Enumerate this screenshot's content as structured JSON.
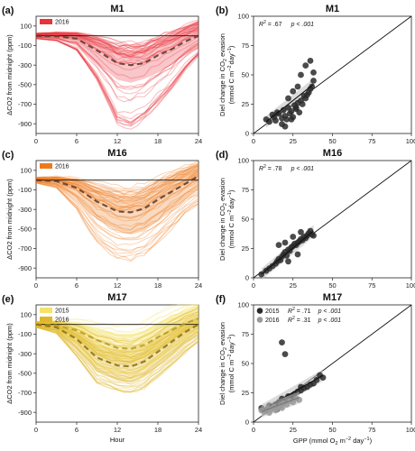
{
  "chart_data": [
    {
      "type": "line",
      "panel_label": "(a)",
      "title": "M1",
      "ylabel": "ΔCO2 from midnight (ppm)",
      "xlabel": "",
      "xlim": [
        0,
        24
      ],
      "ylim": [
        -1000,
        200
      ],
      "xticks": [
        0,
        6,
        12,
        18,
        24
      ],
      "yticks": [
        100,
        -100,
        -300,
        -500,
        -700,
        -900
      ],
      "reference_line": 0,
      "legend": {
        "placement": "top-left",
        "entries": [
          {
            "label": "2016",
            "color": "#e8333c"
          }
        ]
      },
      "series": [
        {
          "name": "2016",
          "color": "#e8333c",
          "mean_x": [
            0,
            3,
            6,
            9,
            12,
            14,
            16,
            18,
            20,
            22,
            24
          ],
          "mean_y": [
            0,
            -5,
            -30,
            -150,
            -280,
            -300,
            -280,
            -200,
            -140,
            -60,
            0
          ],
          "band_low": [
            -20,
            -30,
            -80,
            -280,
            -450,
            -480,
            -440,
            -380,
            -300,
            -200,
            -130
          ],
          "band_high": [
            20,
            25,
            20,
            -40,
            -120,
            -150,
            -120,
            -60,
            0,
            80,
            150
          ],
          "extreme_low": [
            -30,
            -50,
            -150,
            -450,
            -900,
            -950,
            -850,
            -700,
            -550,
            -350,
            -200
          ],
          "extreme_high": [
            30,
            40,
            40,
            10,
            -40,
            -60,
            -40,
            20,
            60,
            120,
            170
          ]
        }
      ]
    },
    {
      "type": "scatter",
      "panel_label": "(b)",
      "title": "M1",
      "ylabel_main": "Diel change in CO",
      "ylabel_sub1": "2",
      "ylabel_mid": " evasion",
      "ylabel_line2": "(mmol C m",
      "ylabel_sup1": "−2",
      "ylabel_day": "day",
      "ylabel_sup2": "−1",
      "ylabel_close": ")",
      "xlim": [
        0,
        100
      ],
      "ylim": [
        0,
        100
      ],
      "xticks": [
        0,
        25,
        50,
        75,
        100
      ],
      "yticks": [
        0,
        25,
        50,
        75,
        100
      ],
      "annotation": {
        "r2_label": "R",
        "r2_sup": "2",
        "r2_value": " = .67",
        "p_text": "p < .001"
      },
      "one_to_one_line": true,
      "series": [
        {
          "name": "2016",
          "color": "#2b2b2b",
          "x": [
            8,
            10,
            12,
            13,
            14,
            15,
            16,
            18,
            19,
            20,
            21,
            22,
            23,
            24,
            25,
            26,
            27,
            28,
            29,
            30,
            31,
            32,
            33,
            34,
            35,
            36,
            37,
            38,
            28,
            30,
            33,
            36,
            38,
            25,
            22,
            18,
            20,
            24,
            27
          ],
          "y": [
            12,
            10,
            16,
            14,
            11,
            18,
            17,
            13,
            20,
            15,
            12,
            22,
            17,
            19,
            14,
            24,
            21,
            26,
            18,
            28,
            25,
            32,
            30,
            33,
            35,
            38,
            40,
            45,
            40,
            50,
            58,
            62,
            52,
            36,
            30,
            8,
            6,
            12,
            22
          ],
          "fit": {
            "x": [
              8,
              38
            ],
            "y": [
              10,
              42
            ]
          }
        }
      ]
    },
    {
      "type": "line",
      "panel_label": "(c)",
      "title": "M16",
      "ylabel": "ΔCO2 from midnight (ppm)",
      "xlabel": "",
      "xlim": [
        0,
        24
      ],
      "ylim": [
        -1000,
        200
      ],
      "xticks": [
        0,
        6,
        12,
        18,
        24
      ],
      "yticks": [
        100,
        -100,
        -300,
        -500,
        -700,
        -900
      ],
      "reference_line": 0,
      "legend": {
        "placement": "top-left",
        "entries": [
          {
            "label": "2016",
            "color": "#ee7a1d"
          }
        ]
      },
      "series": [
        {
          "name": "2016",
          "color": "#ee7a1d",
          "mean_x": [
            0,
            3,
            6,
            9,
            12,
            14,
            16,
            18,
            20,
            22,
            24
          ],
          "mean_y": [
            0,
            -10,
            -80,
            -220,
            -320,
            -330,
            -290,
            -200,
            -120,
            -40,
            40
          ],
          "band_low": [
            -20,
            -50,
            -180,
            -400,
            -520,
            -560,
            -520,
            -420,
            -320,
            -200,
            -100
          ],
          "band_high": [
            20,
            30,
            0,
            -80,
            -150,
            -170,
            -120,
            -40,
            40,
            110,
            160
          ],
          "extreme_low": [
            -30,
            -80,
            -300,
            -650,
            -800,
            -820,
            -760,
            -650,
            -500,
            -350,
            -250
          ],
          "extreme_high": [
            30,
            40,
            30,
            -20,
            -60,
            -70,
            -30,
            40,
            100,
            150,
            190
          ]
        }
      ]
    },
    {
      "type": "scatter",
      "panel_label": "(d)",
      "title": "M16",
      "ylabel_main": "Diel change in CO",
      "ylabel_sub1": "2",
      "ylabel_mid": " evasion",
      "ylabel_line2": "(mmol C m",
      "ylabel_sup1": "−2",
      "ylabel_day": "day",
      "ylabel_sup2": "−1",
      "ylabel_close": ")",
      "xlim": [
        0,
        100
      ],
      "ylim": [
        0,
        100
      ],
      "xticks": [
        0,
        25,
        50,
        75,
        100
      ],
      "yticks": [
        0,
        25,
        50,
        75,
        100
      ],
      "annotation": {
        "r2_label": "R",
        "r2_sup": "2",
        "r2_value": " = .78",
        "p_text": "p < .001"
      },
      "one_to_one_line": true,
      "series": [
        {
          "name": "2016",
          "color": "#2b2b2b",
          "x": [
            5,
            8,
            10,
            12,
            14,
            15,
            16,
            17,
            18,
            19,
            20,
            21,
            22,
            23,
            24,
            25,
            26,
            27,
            28,
            29,
            30,
            31,
            32,
            33,
            34,
            35,
            36,
            37,
            38,
            16,
            20,
            25,
            30,
            22,
            28
          ],
          "y": [
            3,
            6,
            8,
            10,
            12,
            14,
            16,
            15,
            18,
            20,
            22,
            19,
            24,
            23,
            26,
            27,
            29,
            28,
            30,
            31,
            33,
            32,
            35,
            34,
            36,
            38,
            40,
            37,
            36,
            28,
            30,
            35,
            39,
            14,
            20
          ],
          "fit": {
            "x": [
              5,
              38
            ],
            "y": [
              3,
              40
            ]
          }
        }
      ]
    },
    {
      "type": "line",
      "panel_label": "(e)",
      "title": "M17",
      "ylabel": "ΔCO2 from midnight (ppm)",
      "xlabel": "Hour",
      "xlim": [
        0,
        24
      ],
      "ylim": [
        -1000,
        200
      ],
      "xticks": [
        0,
        6,
        12,
        18,
        24
      ],
      "yticks": [
        100,
        -100,
        -300,
        -500,
        -700,
        -900
      ],
      "reference_line": 0,
      "legend": {
        "placement": "top-left",
        "entries": [
          {
            "label": "2015",
            "color": "#f5e26b"
          },
          {
            "label": "2016",
            "color": "#e0b72a"
          }
        ]
      },
      "series": [
        {
          "name": "2015",
          "color": "#f5e26b",
          "mean_x": [
            0,
            3,
            6,
            9,
            12,
            14,
            16,
            18,
            20,
            22,
            24
          ],
          "mean_y": [
            0,
            -10,
            -60,
            -160,
            -240,
            -250,
            -210,
            -130,
            -60,
            10,
            60
          ],
          "band_low": [
            -20,
            -40,
            -140,
            -300,
            -380,
            -390,
            -340,
            -260,
            -170,
            -80,
            -20
          ],
          "band_high": [
            20,
            30,
            20,
            -40,
            -90,
            -100,
            -60,
            20,
            90,
            140,
            200
          ],
          "extreme_low": [
            -30,
            -60,
            -200,
            -420,
            -500,
            -520,
            -460,
            -360,
            -250,
            -150,
            -60
          ],
          "extreme_high": [
            30,
            50,
            60,
            40,
            10,
            0,
            50,
            130,
            200,
            260,
            300
          ]
        },
        {
          "name": "2016",
          "color": "#e0b72a",
          "mean_x": [
            0,
            3,
            6,
            9,
            12,
            14,
            16,
            18,
            20,
            22,
            24
          ],
          "mean_y": [
            0,
            -30,
            -150,
            -340,
            -420,
            -430,
            -380,
            -280,
            -180,
            -80,
            0
          ],
          "band_low": [
            -20,
            -60,
            -230,
            -480,
            -580,
            -600,
            -540,
            -430,
            -320,
            -200,
            -100
          ],
          "band_high": [
            20,
            10,
            -70,
            -200,
            -260,
            -270,
            -220,
            -130,
            -40,
            40,
            100
          ],
          "extreme_low": [
            -30,
            -90,
            -330,
            -600,
            -680,
            -700,
            -650,
            -540,
            -420,
            -290,
            -180
          ],
          "extreme_high": [
            30,
            30,
            -10,
            -100,
            -160,
            -170,
            -120,
            -30,
            50,
            120,
            170
          ]
        }
      ]
    },
    {
      "type": "scatter",
      "panel_label": "(f)",
      "title": "M17",
      "xlabel_main": "GPP (mmol O",
      "xlabel_sub": "2",
      "xlabel_mid": " m",
      "xlabel_sup1": "−2",
      "xlabel_day": " day",
      "xlabel_sup2": "−1",
      "xlabel_close": ")",
      "ylabel_main": "Diel change in CO",
      "ylabel_sub1": "2",
      "ylabel_mid": " evasion",
      "ylabel_line2": "(mmol C m",
      "ylabel_sup1": "−2",
      "ylabel_day": "day",
      "ylabel_sup2": "−1",
      "ylabel_close": ")",
      "xlim": [
        0,
        100
      ],
      "ylim": [
        0,
        100
      ],
      "xticks": [
        0,
        25,
        50,
        75,
        100
      ],
      "yticks": [
        0,
        25,
        50,
        75,
        100
      ],
      "one_to_one_line": true,
      "legend": {
        "placement": "top-left",
        "entries": [
          {
            "label": "2015",
            "color": "#2b2b2b",
            "r2_label": "R",
            "r2_sup": "2",
            "r2_value": " = .71",
            "p_text": "p < .001"
          },
          {
            "label": "2016",
            "color": "#9a9a9a",
            "r2_label": "R",
            "r2_sup": "2",
            "r2_value": " = .31",
            "p_text": "p < .001"
          }
        ]
      },
      "series": [
        {
          "name": "2015",
          "color": "#2b2b2b",
          "x": [
            5,
            8,
            10,
            12,
            14,
            16,
            18,
            20,
            22,
            24,
            26,
            28,
            30,
            32,
            34,
            36,
            38,
            40,
            42,
            44,
            18,
            20,
            25,
            30,
            15
          ],
          "y": [
            12,
            10,
            14,
            13,
            15,
            17,
            20,
            18,
            22,
            21,
            24,
            26,
            27,
            29,
            30,
            32,
            33,
            36,
            40,
            38,
            68,
            58,
            22,
            30,
            11
          ],
          "fit": {
            "x": [
              5,
              44
            ],
            "y": [
              10,
              40
            ]
          }
        },
        {
          "name": "2016",
          "color": "#9a9a9a",
          "x": [
            5,
            7,
            9,
            11,
            13,
            15,
            17,
            19,
            21,
            23,
            25,
            27,
            29,
            10,
            14,
            18
          ],
          "y": [
            10,
            9,
            12,
            11,
            13,
            12,
            14,
            16,
            15,
            18,
            17,
            20,
            19,
            8,
            10,
            12
          ],
          "fit": {
            "x": [
              5,
              29
            ],
            "y": [
              9,
              21
            ]
          }
        }
      ]
    }
  ]
}
